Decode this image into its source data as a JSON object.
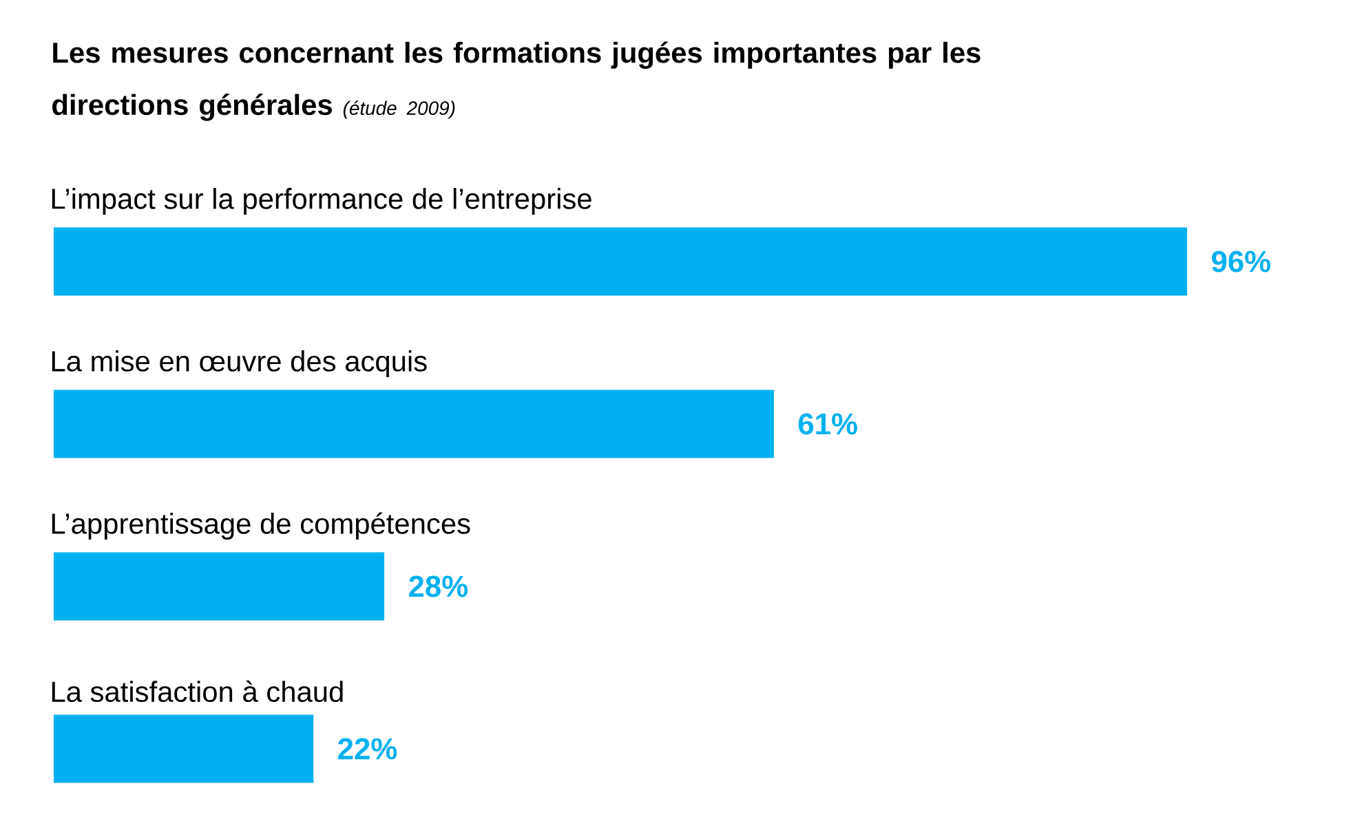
{
  "chart_data": {
    "type": "bar",
    "orientation": "horizontal",
    "title": "Les mesures concernant les formations jugées importantes par les directions générales",
    "subtitle": "(étude 2009)",
    "categories": [
      "L’impact sur la performance de l’entreprise",
      "La mise en œuvre des acquis",
      "L’apprentissage de compétences",
      "La satisfaction à chaud"
    ],
    "values": [
      96,
      61,
      28,
      22
    ],
    "value_labels": [
      "96%",
      "61%",
      "28%",
      "22%"
    ],
    "color": "#00b0f0",
    "tick_labels": false
  }
}
